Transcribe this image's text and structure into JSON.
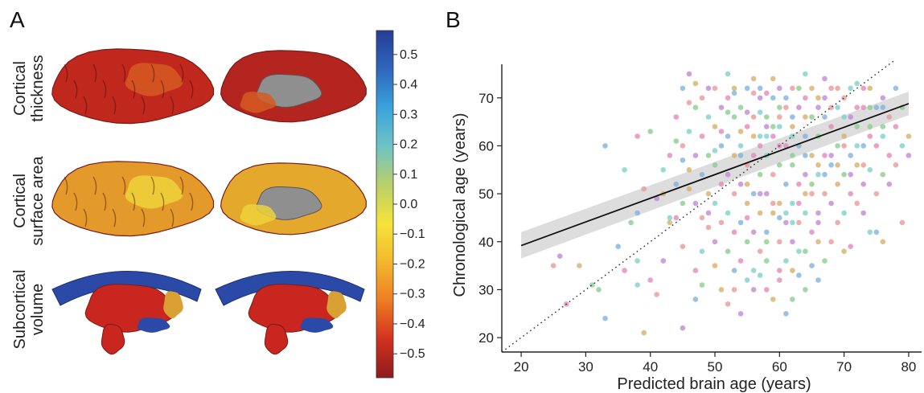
{
  "panel_a": {
    "letter": "A",
    "rows": [
      {
        "label_lines": [
          "Cortical",
          "thickness"
        ],
        "kind": "cortex",
        "lateral": "#c0281e",
        "medial": "#b42520",
        "patch": "#d55a22"
      },
      {
        "label_lines": [
          "Cortical",
          "surface area"
        ],
        "kind": "cortex",
        "lateral": "#e39a2b",
        "medial": "#e4a92c",
        "patch": "#efd23a"
      },
      {
        "label_lines": [
          "Subcortical",
          "volume"
        ],
        "kind": "subcortex",
        "lateral": "#c8261f",
        "medial": "#c8261f",
        "patch": "#2b4aa7"
      }
    ],
    "colorbar": {
      "ticks": [
        "0.5",
        "0.4",
        "0.3",
        "0.2",
        "0.1",
        "0.0",
        "−0.1",
        "−0.2",
        "−0.3",
        "−0.4",
        "−0.5"
      ],
      "range": [
        -0.58,
        0.58
      ],
      "stops": [
        "#8e1b1b",
        "#d2311f",
        "#ee7d22",
        "#f3b82e",
        "#f5e43a",
        "#b9d067",
        "#6fc3c6",
        "#3aa3dc",
        "#2f66bd",
        "#263d95"
      ]
    }
  },
  "chart_data": {
    "type": "scatter",
    "letter": "B",
    "xlabel": "Predicted brain age (years)",
    "ylabel": "Chronological age (years)",
    "xlim": [
      17,
      82
    ],
    "ylim": [
      17,
      77
    ],
    "xticks": [
      20,
      30,
      40,
      50,
      60,
      70,
      80
    ],
    "yticks": [
      20,
      30,
      40,
      50,
      60,
      70
    ],
    "fit_line": {
      "x": [
        20,
        80
      ],
      "y": [
        39.2,
        68.8
      ]
    },
    "ci_band": {
      "x": [
        20,
        80
      ],
      "lower": [
        36.5,
        66.4
      ],
      "upper": [
        42.0,
        71.3
      ]
    },
    "identity_line": {
      "x": [
        17,
        78
      ],
      "y": [
        17,
        78
      ]
    },
    "point_colors": [
      "#e58ab9",
      "#8ccd8e",
      "#7fb3dd",
      "#d7b06b",
      "#c08ad3",
      "#e89a9a",
      "#7fd2c9"
    ],
    "points": [
      [
        27,
        27
      ],
      [
        32,
        30
      ],
      [
        33,
        24
      ],
      [
        39,
        21
      ],
      [
        45,
        22
      ],
      [
        41,
        29
      ],
      [
        38,
        31
      ],
      [
        36,
        34
      ],
      [
        31,
        31
      ],
      [
        35,
        39
      ],
      [
        29,
        35
      ],
      [
        26,
        37
      ],
      [
        25,
        35
      ],
      [
        38,
        36
      ],
      [
        40,
        32
      ],
      [
        37,
        44
      ],
      [
        38,
        46
      ],
      [
        42,
        50
      ],
      [
        41,
        49
      ],
      [
        39,
        51
      ],
      [
        36,
        55
      ],
      [
        38,
        62
      ],
      [
        40,
        63
      ],
      [
        33,
        60
      ],
      [
        43,
        44
      ],
      [
        42,
        36
      ],
      [
        45,
        39
      ],
      [
        43,
        45
      ],
      [
        44,
        45
      ],
      [
        45,
        48
      ],
      [
        44,
        52
      ],
      [
        46,
        55
      ],
      [
        47,
        58
      ],
      [
        45,
        60
      ],
      [
        46,
        63
      ],
      [
        44,
        66
      ],
      [
        47,
        68
      ],
      [
        45,
        72
      ],
      [
        47,
        73
      ],
      [
        46,
        75
      ],
      [
        48,
        70
      ],
      [
        49,
        66
      ],
      [
        48,
        62
      ],
      [
        49,
        58
      ],
      [
        48,
        54
      ],
      [
        49,
        50
      ],
      [
        49,
        46
      ],
      [
        49,
        43
      ],
      [
        48,
        38
      ],
      [
        47,
        34
      ],
      [
        48,
        31
      ],
      [
        47,
        28
      ],
      [
        50,
        35
      ],
      [
        50,
        40
      ],
      [
        51,
        44
      ],
      [
        50,
        48
      ],
      [
        51,
        52
      ],
      [
        50,
        56
      ],
      [
        51,
        60
      ],
      [
        50,
        64
      ],
      [
        51,
        68
      ],
      [
        50,
        72
      ],
      [
        52,
        75
      ],
      [
        52,
        70
      ],
      [
        53,
        66
      ],
      [
        52,
        62
      ],
      [
        53,
        58
      ],
      [
        52,
        54
      ],
      [
        53,
        50
      ],
      [
        52,
        46
      ],
      [
        53,
        42
      ],
      [
        52,
        38
      ],
      [
        53,
        34
      ],
      [
        51,
        30
      ],
      [
        54,
        25
      ],
      [
        52,
        27
      ],
      [
        55,
        32
      ],
      [
        54,
        36
      ],
      [
        55,
        40
      ],
      [
        54,
        44
      ],
      [
        55,
        48
      ],
      [
        54,
        52
      ],
      [
        55,
        56
      ],
      [
        54,
        60
      ],
      [
        55,
        64
      ],
      [
        54,
        68
      ],
      [
        55,
        72
      ],
      [
        56,
        74
      ],
      [
        57,
        70
      ],
      [
        56,
        66
      ],
      [
        57,
        62
      ],
      [
        56,
        58
      ],
      [
        57,
        54
      ],
      [
        56,
        50
      ],
      [
        57,
        46
      ],
      [
        56,
        42
      ],
      [
        57,
        38
      ],
      [
        56,
        34
      ],
      [
        58,
        30
      ],
      [
        58,
        36
      ],
      [
        58,
        42
      ],
      [
        59,
        46
      ],
      [
        58,
        50
      ],
      [
        59,
        54
      ],
      [
        58,
        58
      ],
      [
        59,
        62
      ],
      [
        58,
        66
      ],
      [
        59,
        70
      ],
      [
        59,
        74
      ],
      [
        60,
        72
      ],
      [
        61,
        68
      ],
      [
        60,
        64
      ],
      [
        61,
        60
      ],
      [
        60,
        56
      ],
      [
        61,
        52
      ],
      [
        60,
        48
      ],
      [
        61,
        44
      ],
      [
        60,
        40
      ],
      [
        61,
        36
      ],
      [
        60,
        32
      ],
      [
        62,
        28
      ],
      [
        61,
        25
      ],
      [
        62,
        34
      ],
      [
        62,
        40
      ],
      [
        63,
        44
      ],
      [
        62,
        48
      ],
      [
        63,
        52
      ],
      [
        62,
        56
      ],
      [
        63,
        60
      ],
      [
        62,
        64
      ],
      [
        63,
        68
      ],
      [
        62,
        72
      ],
      [
        64,
        75
      ],
      [
        64,
        70
      ],
      [
        65,
        66
      ],
      [
        64,
        62
      ],
      [
        65,
        58
      ],
      [
        64,
        54
      ],
      [
        65,
        50
      ],
      [
        64,
        46
      ],
      [
        65,
        42
      ],
      [
        64,
        38
      ],
      [
        65,
        35
      ],
      [
        66,
        40
      ],
      [
        66,
        46
      ],
      [
        67,
        50
      ],
      [
        66,
        54
      ],
      [
        67,
        58
      ],
      [
        66,
        62
      ],
      [
        67,
        66
      ],
      [
        66,
        70
      ],
      [
        67,
        74
      ],
      [
        68,
        72
      ],
      [
        69,
        68
      ],
      [
        68,
        64
      ],
      [
        69,
        60
      ],
      [
        68,
        56
      ],
      [
        69,
        52
      ],
      [
        68,
        48
      ],
      [
        69,
        44
      ],
      [
        70,
        46
      ],
      [
        71,
        50
      ],
      [
        70,
        54
      ],
      [
        71,
        58
      ],
      [
        70,
        62
      ],
      [
        71,
        66
      ],
      [
        70,
        70
      ],
      [
        72,
        73
      ],
      [
        73,
        68
      ],
      [
        72,
        64
      ],
      [
        73,
        60
      ],
      [
        72,
        56
      ],
      [
        73,
        52
      ],
      [
        72,
        48
      ],
      [
        74,
        55
      ],
      [
        75,
        60
      ],
      [
        74,
        64
      ],
      [
        75,
        68
      ],
      [
        74,
        72
      ],
      [
        76,
        70
      ],
      [
        77,
        66
      ],
      [
        76,
        62
      ],
      [
        77,
        58
      ],
      [
        76,
        54
      ],
      [
        75,
        42
      ],
      [
        76,
        40
      ],
      [
        77,
        52
      ],
      [
        78,
        56
      ],
      [
        79,
        60
      ],
      [
        78,
        64
      ],
      [
        79,
        68
      ],
      [
        78,
        72
      ],
      [
        80,
        62
      ],
      [
        80,
        58
      ],
      [
        79,
        44
      ],
      [
        74,
        42
      ],
      [
        71,
        39
      ],
      [
        67,
        36
      ],
      [
        63,
        33
      ],
      [
        59,
        28
      ],
      [
        56,
        30
      ],
      [
        53,
        30
      ],
      [
        57,
        33
      ],
      [
        60,
        34
      ],
      [
        64,
        30
      ],
      [
        66,
        32
      ],
      [
        70,
        38
      ],
      [
        73,
        46
      ],
      [
        75,
        50
      ],
      [
        63,
        38
      ],
      [
        55,
        45
      ],
      [
        58,
        40
      ],
      [
        60,
        45
      ],
      [
        64,
        50
      ],
      [
        66,
        44
      ],
      [
        68,
        40
      ],
      [
        62,
        44
      ],
      [
        57,
        60
      ],
      [
        59,
        64
      ],
      [
        61,
        70
      ],
      [
        65,
        72
      ],
      [
        67,
        70
      ],
      [
        69,
        72
      ],
      [
        71,
        72
      ],
      [
        73,
        72
      ],
      [
        63,
        72
      ],
      [
        57,
        72
      ],
      [
        53,
        72
      ],
      [
        49,
        72
      ],
      [
        46,
        69
      ],
      [
        42,
        55
      ],
      [
        43,
        58
      ],
      [
        44,
        61
      ],
      [
        45,
        57
      ],
      [
        46,
        51
      ],
      [
        47,
        48
      ],
      [
        48,
        45
      ],
      [
        50,
        59
      ],
      [
        51,
        63
      ],
      [
        52,
        67
      ],
      [
        53,
        71
      ],
      [
        54,
        63
      ],
      [
        55,
        67
      ],
      [
        56,
        71
      ],
      [
        57,
        67
      ],
      [
        58,
        71
      ],
      [
        60,
        68
      ],
      [
        62,
        66
      ],
      [
        64,
        66
      ],
      [
        66,
        68
      ],
      [
        68,
        68
      ],
      [
        70,
        66
      ],
      [
        72,
        68
      ],
      [
        74,
        68
      ],
      [
        76,
        68
      ],
      [
        55,
        52
      ],
      [
        57,
        50
      ],
      [
        59,
        48
      ],
      [
        61,
        46
      ],
      [
        63,
        48
      ],
      [
        65,
        52
      ],
      [
        67,
        54
      ],
      [
        69,
        56
      ],
      [
        71,
        54
      ],
      [
        73,
        56
      ],
      [
        58,
        62
      ],
      [
        60,
        60
      ],
      [
        62,
        58
      ],
      [
        64,
        58
      ],
      [
        66,
        56
      ],
      [
        68,
        58
      ],
      [
        70,
        60
      ],
      [
        72,
        60
      ],
      [
        74,
        62
      ],
      [
        76,
        64
      ],
      [
        54,
        58
      ],
      [
        56,
        62
      ],
      [
        58,
        64
      ],
      [
        60,
        66
      ],
      [
        62,
        62
      ]
    ]
  }
}
